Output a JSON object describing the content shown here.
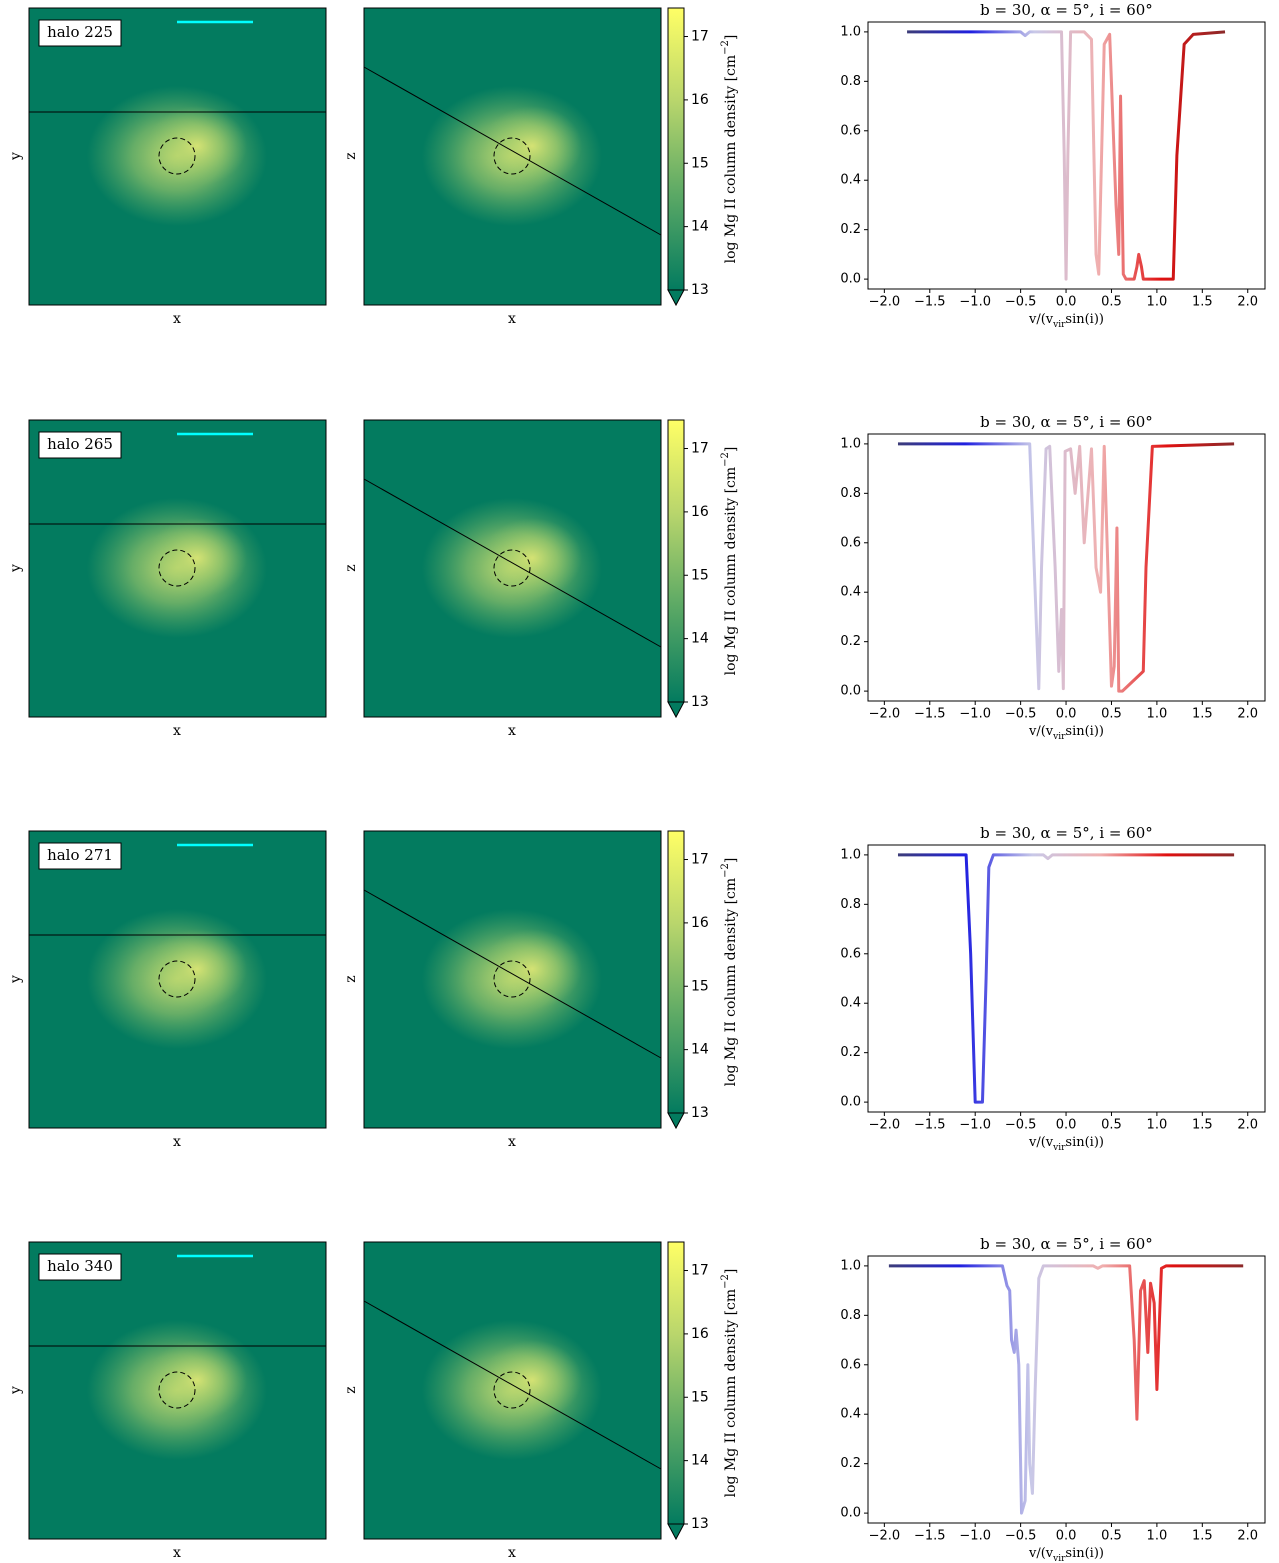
{
  "maps": [
    {
      "label": "halo 225",
      "faces": [
        {
          "xlabel": "x",
          "ylabel": "y"
        },
        {
          "xlabel": "x",
          "ylabel": "z"
        }
      ],
      "colorbar": {
        "label": [
          "log Mg II column density [cm",
          "−2",
          "]"
        ],
        "lim": [
          13,
          17.45
        ],
        "ticks": [
          13,
          14,
          15,
          16,
          17
        ],
        "colors": [
          "#037b5f",
          "#5aa865",
          "#b8d56c",
          "#ffff66"
        ]
      }
    },
    {
      "label": "halo 265",
      "faces": [
        {
          "xlabel": "x",
          "ylabel": "y"
        },
        {
          "xlabel": "x",
          "ylabel": "z"
        }
      ],
      "colorbar": {
        "label": [
          "log Mg II column density [cm",
          "−2",
          "]"
        ],
        "lim": [
          13,
          17.45
        ],
        "ticks": [
          13,
          14,
          15,
          16,
          17
        ],
        "colors": [
          "#037b5f",
          "#5aa865",
          "#b8d56c",
          "#ffff66"
        ]
      }
    },
    {
      "label": "halo 271",
      "faces": [
        {
          "xlabel": "x",
          "ylabel": "y"
        },
        {
          "xlabel": "x",
          "ylabel": "z"
        }
      ],
      "colorbar": {
        "label": [
          "log Mg II column density [cm",
          "−2",
          "]"
        ],
        "lim": [
          13,
          17.45
        ],
        "ticks": [
          13,
          14,
          15,
          16,
          17
        ],
        "colors": [
          "#037b5f",
          "#5aa865",
          "#b8d56c",
          "#ffff66"
        ]
      }
    },
    {
      "label": "halo 340",
      "faces": [
        {
          "xlabel": "x",
          "ylabel": "y"
        },
        {
          "xlabel": "x",
          "ylabel": "z"
        }
      ],
      "colorbar": {
        "label": [
          "log Mg II column density [cm",
          "−2",
          "]"
        ],
        "lim": [
          13,
          17.45
        ],
        "ticks": [
          13,
          14,
          15,
          16,
          17
        ],
        "colors": [
          "#037b5f",
          "#5aa865",
          "#b8d56c",
          "#ffff66"
        ]
      }
    }
  ],
  "chart_data": [
    {
      "type": "line",
      "title": "b = 30, α = 5°, i = 60°",
      "xlabel": [
        "v/(v",
        "vir",
        "sin(i))"
      ],
      "x": [
        -1.75,
        -0.5,
        -0.45,
        -0.4,
        -0.05,
        -0.02,
        0,
        0.02,
        0.05,
        0.1,
        0.2,
        0.28,
        0.33,
        0.36,
        0.42,
        0.48,
        0.55,
        0.58,
        0.6,
        0.63,
        0.66,
        0.75,
        0.78,
        0.8,
        0.83,
        0.85,
        1.18,
        1.22,
        1.3,
        1.4,
        1.75
      ],
      "series": [
        {
          "colors": [
            "#3c3c78",
            "#2020e0",
            "#c8c8e8",
            "#f0b0b0",
            "#e01010",
            "#8b2a2a"
          ],
          "values": [
            1,
            1,
            0.985,
            1,
            1,
            0.5,
            0,
            0.5,
            1,
            1,
            1,
            0.97,
            0.1,
            0.02,
            0.95,
            0.99,
            0.3,
            0.1,
            0.74,
            0.02,
            0,
            0,
            0.05,
            0.1,
            0.05,
            0,
            0,
            0.5,
            0.95,
            0.99,
            1
          ]
        }
      ],
      "xlim": [
        -2.18,
        2.19
      ],
      "ylim": [
        -0.04,
        1.04
      ],
      "xticks": [
        {
          "value": -2,
          "label": "−2.0"
        },
        {
          "value": -1.5,
          "label": "−1.5"
        },
        {
          "value": -1,
          "label": "−1.0"
        },
        {
          "value": -0.5,
          "label": "−0.5"
        },
        {
          "value": 0,
          "label": "0.0"
        },
        {
          "value": 0.5,
          "label": "0.5"
        },
        {
          "value": 1,
          "label": "1.0"
        },
        {
          "value": 1.5,
          "label": "1.5"
        },
        {
          "value": 2,
          "label": "2.0"
        }
      ],
      "yticks": [
        {
          "value": 0,
          "label": "0.0"
        },
        {
          "value": 0.2,
          "label": "0.2"
        },
        {
          "value": 0.4,
          "label": "0.4"
        },
        {
          "value": 0.6,
          "label": "0.6"
        },
        {
          "value": 0.8,
          "label": "0.8"
        },
        {
          "value": 1,
          "label": "1.0"
        }
      ]
    },
    {
      "type": "line",
      "title": "b = 30, α = 5°, i = 60°",
      "xlabel": [
        "v/(v",
        "vir",
        "sin(i))"
      ],
      "x": [
        -1.85,
        -0.4,
        -0.35,
        -0.3,
        -0.27,
        -0.22,
        -0.18,
        -0.12,
        -0.08,
        -0.05,
        -0.03,
        -0.01,
        0.05,
        0.1,
        0.15,
        0.2,
        0.28,
        0.33,
        0.38,
        0.42,
        0.46,
        0.5,
        0.53,
        0.56,
        0.58,
        0.62,
        0.85,
        0.88,
        0.95,
        1.85
      ],
      "series": [
        {
          "colors": [
            "#3c3c78",
            "#2020e0",
            "#c8c8e8",
            "#f0b0b0",
            "#e01010",
            "#8b2a2a"
          ],
          "values": [
            1,
            1,
            0.5,
            0.01,
            0.5,
            0.98,
            0.99,
            0.5,
            0.08,
            0.33,
            0.01,
            0.97,
            0.98,
            0.8,
            0.99,
            0.6,
            0.98,
            0.5,
            0.4,
            0.99,
            0.5,
            0.02,
            0.1,
            0.66,
            0,
            0,
            0.08,
            0.5,
            0.99,
            1
          ]
        }
      ],
      "xlim": [
        -2.18,
        2.19
      ],
      "ylim": [
        -0.04,
        1.04
      ],
      "xticks": [
        {
          "value": -2,
          "label": "−2.0"
        },
        {
          "value": -1.5,
          "label": "−1.5"
        },
        {
          "value": -1,
          "label": "−1.0"
        },
        {
          "value": -0.5,
          "label": "−0.5"
        },
        {
          "value": 0,
          "label": "0.0"
        },
        {
          "value": 0.5,
          "label": "0.5"
        },
        {
          "value": 1,
          "label": "1.0"
        },
        {
          "value": 1.5,
          "label": "1.5"
        },
        {
          "value": 2,
          "label": "2.0"
        }
      ],
      "yticks": [
        {
          "value": 0,
          "label": "0.0"
        },
        {
          "value": 0.2,
          "label": "0.2"
        },
        {
          "value": 0.4,
          "label": "0.4"
        },
        {
          "value": 0.6,
          "label": "0.6"
        },
        {
          "value": 0.8,
          "label": "0.8"
        },
        {
          "value": 1,
          "label": "1.0"
        }
      ]
    },
    {
      "type": "line",
      "title": "b = 30, α = 5°, i = 60°",
      "xlabel": [
        "v/(v",
        "vir",
        "sin(i))"
      ],
      "x": [
        -1.85,
        -1.1,
        -1.05,
        -1.0,
        -0.92,
        -0.88,
        -0.85,
        -0.8,
        -0.25,
        -0.2,
        -0.15,
        1.85
      ],
      "series": [
        {
          "colors": [
            "#3c3c78",
            "#2020e0",
            "#c8c8e8",
            "#f0b0b0",
            "#e01010",
            "#8b2a2a"
          ],
          "values": [
            1,
            1,
            0.6,
            0,
            0,
            0.5,
            0.95,
            1,
            1,
            0.985,
            1,
            1
          ]
        }
      ],
      "xlim": [
        -2.18,
        2.19
      ],
      "ylim": [
        -0.04,
        1.04
      ],
      "xticks": [
        {
          "value": -2,
          "label": "−2.0"
        },
        {
          "value": -1.5,
          "label": "−1.5"
        },
        {
          "value": -1,
          "label": "−1.0"
        },
        {
          "value": -0.5,
          "label": "−0.5"
        },
        {
          "value": 0,
          "label": "0.0"
        },
        {
          "value": 0.5,
          "label": "0.5"
        },
        {
          "value": 1,
          "label": "1.0"
        },
        {
          "value": 1.5,
          "label": "1.5"
        },
        {
          "value": 2,
          "label": "2.0"
        }
      ],
      "yticks": [
        {
          "value": 0,
          "label": "0.0"
        },
        {
          "value": 0.2,
          "label": "0.2"
        },
        {
          "value": 0.4,
          "label": "0.4"
        },
        {
          "value": 0.6,
          "label": "0.6"
        },
        {
          "value": 0.8,
          "label": "0.8"
        },
        {
          "value": 1,
          "label": "1.0"
        }
      ]
    },
    {
      "type": "line",
      "title": "b = 30, α = 5°, i = 60°",
      "xlabel": [
        "v/(v",
        "vir",
        "sin(i))"
      ],
      "x": [
        -1.95,
        -0.7,
        -0.65,
        -0.62,
        -0.6,
        -0.57,
        -0.55,
        -0.52,
        -0.49,
        -0.45,
        -0.42,
        -0.4,
        -0.37,
        -0.34,
        -0.3,
        -0.25,
        -0.2,
        0.3,
        0.35,
        0.4,
        0.7,
        0.75,
        0.78,
        0.82,
        0.86,
        0.9,
        0.93,
        0.97,
        1.0,
        1.02,
        1.05,
        1.1,
        1.95
      ],
      "series": [
        {
          "colors": [
            "#3c3c78",
            "#2020e0",
            "#c8c8e8",
            "#f0b0b0",
            "#e01010",
            "#8b2a2a"
          ],
          "values": [
            1,
            1,
            0.92,
            0.9,
            0.7,
            0.65,
            0.74,
            0.6,
            0,
            0.05,
            0.6,
            0.2,
            0.08,
            0.5,
            0.95,
            1,
            1,
            1,
            0.99,
            1,
            1,
            0.7,
            0.38,
            0.9,
            0.94,
            0.65,
            0.93,
            0.85,
            0.5,
            0.7,
            0.99,
            1,
            1
          ]
        }
      ],
      "xlim": [
        -2.18,
        2.19
      ],
      "ylim": [
        -0.04,
        1.04
      ],
      "xticks": [
        {
          "value": -2,
          "label": "−2.0"
        },
        {
          "value": -1.5,
          "label": "−1.5"
        },
        {
          "value": -1,
          "label": "−1.0"
        },
        {
          "value": -0.5,
          "label": "−0.5"
        },
        {
          "value": 0,
          "label": "0.0"
        },
        {
          "value": 0.5,
          "label": "0.5"
        },
        {
          "value": 1,
          "label": "1.0"
        },
        {
          "value": 1.5,
          "label": "1.5"
        },
        {
          "value": 2,
          "label": "2.0"
        }
      ],
      "yticks": [
        {
          "value": 0,
          "label": "0.0"
        },
        {
          "value": 0.2,
          "label": "0.2"
        },
        {
          "value": 0.4,
          "label": "0.4"
        },
        {
          "value": 0.6,
          "label": "0.6"
        },
        {
          "value": 0.8,
          "label": "0.8"
        },
        {
          "value": 1,
          "label": "1.0"
        }
      ]
    }
  ]
}
